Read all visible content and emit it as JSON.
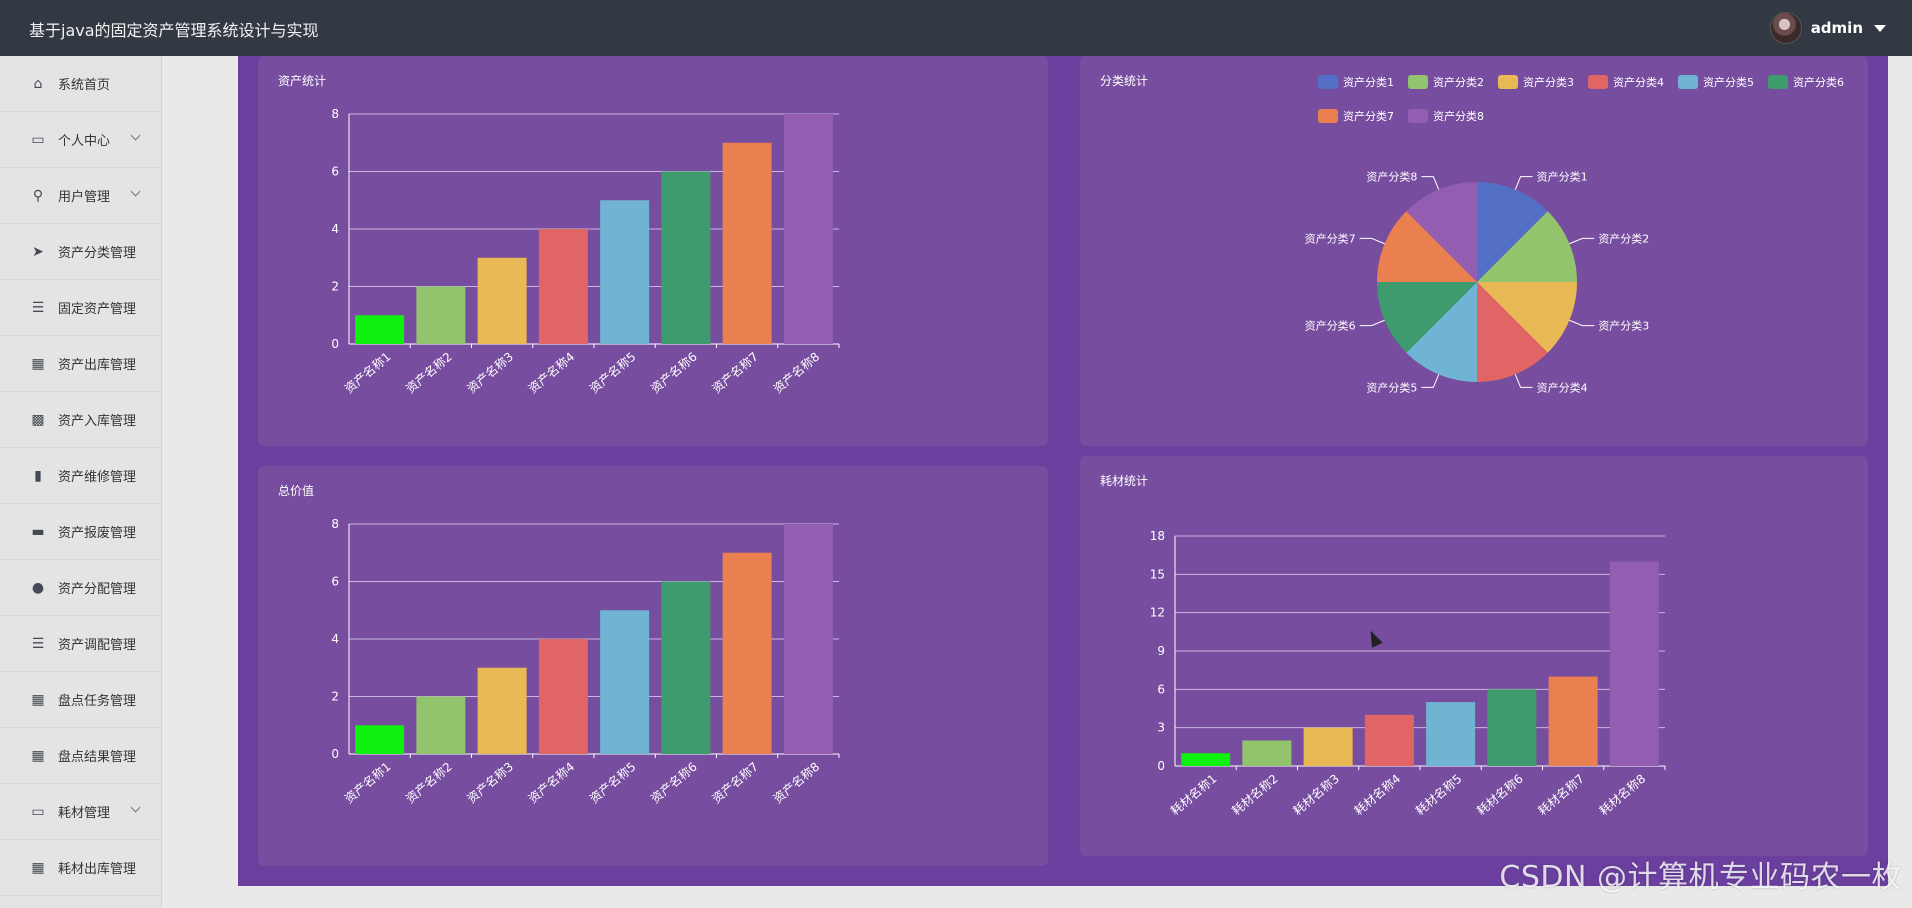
{
  "header": {
    "title": "基于java的固定资产管理系统设计与实现",
    "username": "admin"
  },
  "sidebar": {
    "items": [
      {
        "label": "系统首页",
        "icon": "home-icon",
        "expandable": false
      },
      {
        "label": "个人中心",
        "icon": "card-icon",
        "expandable": true
      },
      {
        "label": "用户管理",
        "icon": "user-icon",
        "expandable": true
      },
      {
        "label": "资产分类管理",
        "icon": "send-icon",
        "expandable": false
      },
      {
        "label": "固定资产管理",
        "icon": "list-icon",
        "expandable": false
      },
      {
        "label": "资产出库管理",
        "icon": "grid-icon",
        "expandable": false
      },
      {
        "label": "资产入库管理",
        "icon": "grid9-icon",
        "expandable": false
      },
      {
        "label": "资产维修管理",
        "icon": "bar-chart-icon",
        "expandable": false
      },
      {
        "label": "资产报废管理",
        "icon": "ticket-icon",
        "expandable": false
      },
      {
        "label": "资产分配管理",
        "icon": "pin-icon",
        "expandable": false
      },
      {
        "label": "资产调配管理",
        "icon": "list-icon",
        "expandable": false
      },
      {
        "label": "盘点任务管理",
        "icon": "grid-icon",
        "expandable": false
      },
      {
        "label": "盘点结果管理",
        "icon": "grid-icon",
        "expandable": false
      },
      {
        "label": "耗材管理",
        "icon": "monitor-icon",
        "expandable": true
      },
      {
        "label": "耗材出库管理",
        "icon": "grid-icon",
        "expandable": false
      }
    ]
  },
  "watermark": "CSDN @计算机专业码农一枚",
  "chart_data": [
    {
      "id": "asset-count",
      "type": "bar",
      "title": "资产统计",
      "categories": [
        "资产名称1",
        "资产名称2",
        "资产名称3",
        "资产名称4",
        "资产名称5",
        "资产名称6",
        "资产名称7",
        "资产名称8"
      ],
      "values": [
        1,
        2,
        3,
        4,
        5,
        6,
        7,
        8
      ],
      "colors": [
        "#0ff10f",
        "#91c46c",
        "#e9b955",
        "#e06564",
        "#70b3d3",
        "#3e9b6e",
        "#ea7f4f",
        "#935eb2"
      ],
      "ylim": [
        0,
        8
      ],
      "yticks": [
        0,
        2,
        4,
        6,
        8
      ],
      "grid": true
    },
    {
      "id": "category-stats",
      "type": "pie",
      "title": "分类统计",
      "labels": [
        "资产分类1",
        "资产分类2",
        "资产分类3",
        "资产分类4",
        "资产分类5",
        "资产分类6",
        "资产分类7",
        "资产分类8"
      ],
      "values": [
        1,
        1,
        1,
        1,
        1,
        1,
        1,
        1
      ],
      "colors": [
        "#5470c6",
        "#91c46c",
        "#e9b955",
        "#e06564",
        "#70b3d3",
        "#3e9b6e",
        "#ea7f4f",
        "#935eb2"
      ],
      "legend": "top-right"
    },
    {
      "id": "total-value",
      "type": "bar",
      "title": "总价值",
      "categories": [
        "资产名称1",
        "资产名称2",
        "资产名称3",
        "资产名称4",
        "资产名称5",
        "资产名称6",
        "资产名称7",
        "资产名称8"
      ],
      "values": [
        1,
        2,
        3,
        4,
        5,
        6,
        7,
        8
      ],
      "colors": [
        "#0ff10f",
        "#91c46c",
        "#e9b955",
        "#e06564",
        "#70b3d3",
        "#3e9b6e",
        "#ea7f4f",
        "#935eb2"
      ],
      "ylim": [
        0,
        8
      ],
      "yticks": [
        0,
        2,
        4,
        6,
        8
      ],
      "grid": true
    },
    {
      "id": "consumable-stats",
      "type": "bar",
      "title": "耗材统计",
      "categories": [
        "耗材名称1",
        "耗材名称2",
        "耗材名称3",
        "耗材名称4",
        "耗材名称5",
        "耗材名称6",
        "耗材名称7",
        "耗材名称8"
      ],
      "values": [
        1,
        2,
        3,
        4,
        5,
        6,
        7,
        16
      ],
      "colors": [
        "#0ff10f",
        "#91c46c",
        "#e9b955",
        "#e06564",
        "#70b3d3",
        "#3e9b6e",
        "#ea7f4f",
        "#935eb2"
      ],
      "ylim": [
        0,
        18
      ],
      "yticks": [
        0,
        3,
        6,
        9,
        12,
        15,
        18
      ],
      "grid": true
    }
  ]
}
